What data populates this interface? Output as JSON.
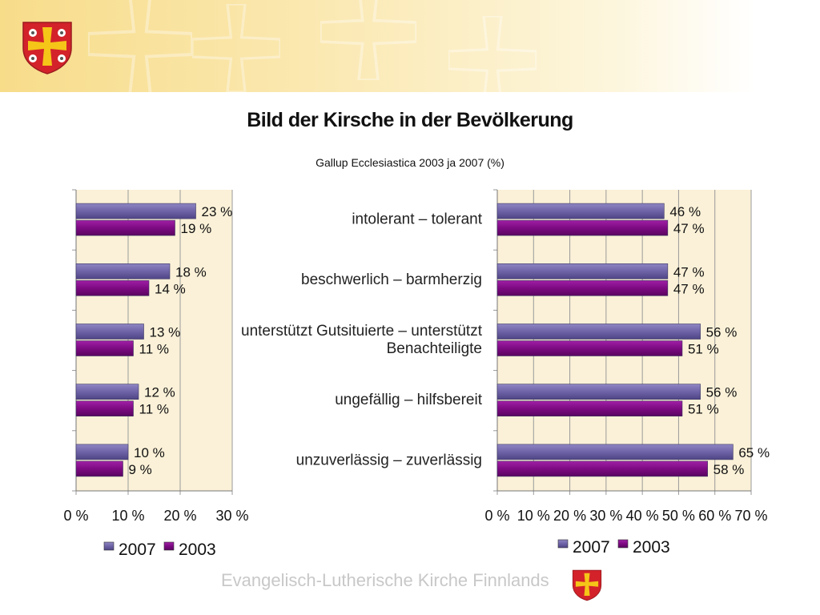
{
  "header": {
    "title": "Bild der Kirsche in der Bevölkerung",
    "subtitle": "Gallup Ecclesiastica 2003 ja 2007 (%)"
  },
  "logos": {
    "top_crest": "church-crest-icon",
    "footer_crest": "church-crest-icon"
  },
  "footer": {
    "text": "Evangelisch-Lutherische Kirche Finnlands"
  },
  "colors": {
    "series_2007": "#6e63a6",
    "series_2003": "#7d0a82",
    "plot_background": "#fbf1d8",
    "gridline": "#9a9a9a",
    "banner": "#f7dc8a",
    "crest_red": "#d3222a",
    "crest_yellow": "#f5c518"
  },
  "chart_data": [
    {
      "type": "bar",
      "orientation": "horizontal",
      "categories": [
        "intolerant – tolerant",
        "beschwerlich – barmherzig",
        "unterstützt Gutsituierte – unterstützt Benachteiligte",
        "ungefällig – hilfsbereit",
        "unzuverlässig – zuverlässig"
      ],
      "series": [
        {
          "name": "2007",
          "values": [
            23,
            18,
            13,
            12,
            10
          ]
        },
        {
          "name": "2003",
          "values": [
            19,
            14,
            11,
            11,
            9
          ]
        }
      ],
      "tick_labels": [
        "0 %",
        "10 %",
        "20 %",
        "30 %"
      ],
      "xlim": [
        0,
        30
      ],
      "value_suffix": " %",
      "legend": "bottom",
      "grid": true
    },
    {
      "type": "bar",
      "orientation": "horizontal",
      "categories": [
        "intolerant – tolerant",
        "beschwerlich – barmherzig",
        "unterstützt Gutsituierte – unterstützt Benachteiligte",
        "ungefällig – hilfsbereit",
        "unzuverlässig – zuverlässig"
      ],
      "category_labels": [
        [
          "intolerant – tolerant"
        ],
        [
          "beschwerlich – barmherzig"
        ],
        [
          "unterstützt Gutsituierte – unterstützt",
          "Benachteiligte"
        ],
        [
          "ungefällig – hilfsbereit"
        ],
        [
          "unzuverlässig – zuverlässig"
        ]
      ],
      "series": [
        {
          "name": "2007",
          "values": [
            46,
            47,
            56,
            56,
            65
          ]
        },
        {
          "name": "2003",
          "values": [
            47,
            47,
            51,
            51,
            58
          ]
        }
      ],
      "tick_labels": [
        "0 %",
        "10 %",
        "20 %",
        "30 %",
        "40 %",
        "50 %",
        "60 %",
        "70 %"
      ],
      "xlim": [
        0,
        70
      ],
      "value_suffix": " %",
      "legend": "bottom",
      "grid": true
    }
  ]
}
